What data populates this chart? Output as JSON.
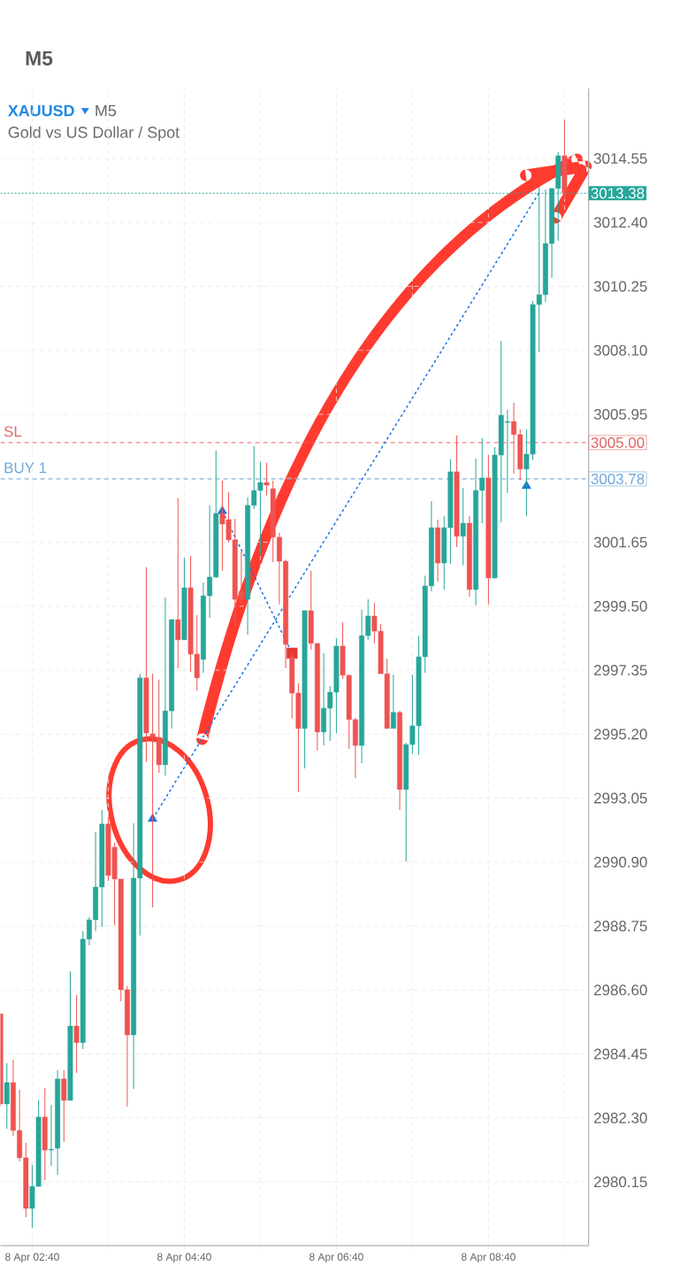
{
  "chart_data": {
    "type": "candlestick",
    "title": "XAUUSD",
    "subtitle": "Gold vs US Dollar / Spot",
    "annotations": [
      "M5",
      "M5",
      {
        "text": "SL",
        "y": 3005.0
      },
      {
        "text": "BUY 1",
        "y": 3003.78
      }
    ],
    "grid": true,
    "xlim": [
      "--04-08T02:15",
      "--04-08T09:59"
    ],
    "xticks": [
      {
        "value": "--04-08T02:40",
        "label": "8 Apr 02:40"
      },
      {
        "value": "--04-08T03:40",
        "label": null
      },
      {
        "value": "--04-08T04:40",
        "label": "8 Apr 04:40"
      },
      {
        "value": "--04-08T05:40",
        "label": null
      },
      {
        "value": "--04-08T06:40",
        "label": "8 Apr 06:40"
      },
      {
        "value": "--04-08T07:40",
        "label": null
      },
      {
        "value": "--04-08T08:40",
        "label": "8 Apr 08:40"
      },
      {
        "value": "--04-08T09:40",
        "label": null
      }
    ],
    "ylim": [
      2978.01,
      3016.9
    ],
    "yticks": [
      {
        "value": 2980.15,
        "label": "2980.15"
      },
      {
        "value": 2982.3,
        "label": "2982.30"
      },
      {
        "value": 2984.45,
        "label": "2984.45"
      },
      {
        "value": 2986.6,
        "label": "2986.60"
      },
      {
        "value": 2988.75,
        "label": "2988.75"
      },
      {
        "value": 2990.9,
        "label": "2990.90"
      },
      {
        "value": 2993.05,
        "label": "2993.05"
      },
      {
        "value": 2995.2,
        "label": "2995.20"
      },
      {
        "value": 2997.35,
        "label": "2997.35"
      },
      {
        "value": 2999.5,
        "label": "2999.50"
      },
      {
        "value": 3001.65,
        "label": "3001.65"
      },
      {
        "value": 3003.8,
        "label": null
      },
      {
        "value": 3005.95,
        "label": "3005.95"
      },
      {
        "value": 3008.1,
        "label": "3008.10"
      },
      {
        "value": 3010.25,
        "label": "3010.25"
      },
      {
        "value": 3012.4,
        "label": "3012.40"
      },
      {
        "value": 3014.55,
        "label": "3014.55"
      }
    ],
    "ref_lines": [
      {
        "axis": "y",
        "value": 3013.38,
        "label": "3013.38",
        "color": "#26a69a",
        "line_style": "dotted"
      },
      {
        "axis": "y",
        "value": 3005.0,
        "label": "3005.00",
        "color": "#e06666",
        "line_style": "dashed"
      },
      {
        "axis": "y",
        "value": 3003.78,
        "label": "3003.78",
        "color": "#6fa8dc",
        "line_style": "dashed"
      }
    ],
    "x": [
      "--04-08T02:15",
      "--04-08T02:20",
      "--04-08T02:25",
      "--04-08T02:30",
      "--04-08T02:35",
      "--04-08T02:40",
      "--04-08T02:45",
      "--04-08T02:50",
      "--04-08T02:55",
      "--04-08T03:00",
      "--04-08T03:05",
      "--04-08T03:10",
      "--04-08T03:15",
      "--04-08T03:20",
      "--04-08T03:25",
      "--04-08T03:30",
      "--04-08T03:35",
      "--04-08T03:40",
      "--04-08T03:45",
      "--04-08T03:50",
      "--04-08T03:55",
      "--04-08T04:00",
      "--04-08T04:05",
      "--04-08T04:10",
      "--04-08T04:15",
      "--04-08T04:20",
      "--04-08T04:25",
      "--04-08T04:30",
      "--04-08T04:35",
      "--04-08T04:40",
      "--04-08T04:45",
      "--04-08T04:50",
      "--04-08T04:55",
      "--04-08T05:00",
      "--04-08T05:05",
      "--04-08T05:10",
      "--04-08T05:15",
      "--04-08T05:20",
      "--04-08T05:25",
      "--04-08T05:30",
      "--04-08T05:35",
      "--04-08T05:40",
      "--04-08T05:45",
      "--04-08T05:50",
      "--04-08T05:55",
      "--04-08T06:00",
      "--04-08T06:05",
      "--04-08T06:10",
      "--04-08T06:15",
      "--04-08T06:20",
      "--04-08T06:25",
      "--04-08T06:30",
      "--04-08T06:35",
      "--04-08T06:40",
      "--04-08T06:45",
      "--04-08T06:50",
      "--04-08T06:55",
      "--04-08T07:00",
      "--04-08T07:05",
      "--04-08T07:10",
      "--04-08T07:15",
      "--04-08T07:20",
      "--04-08T07:25",
      "--04-08T07:30",
      "--04-08T07:35",
      "--04-08T07:40",
      "--04-08T07:45",
      "--04-08T07:50",
      "--04-08T07:55",
      "--04-08T08:00",
      "--04-08T08:05",
      "--04-08T08:10",
      "--04-08T08:15",
      "--04-08T08:20",
      "--04-08T08:25",
      "--04-08T08:30",
      "--04-08T08:35",
      "--04-08T08:40",
      "--04-08T08:45",
      "--04-08T08:50",
      "--04-08T08:55",
      "--04-08T09:00",
      "--04-08T09:05",
      "--04-08T09:10",
      "--04-08T09:15",
      "--04-08T09:20",
      "--04-08T09:25",
      "--04-08T09:30",
      "--04-08T09:35",
      "--04-08T09:40"
    ],
    "colors": [
      "#ef5350",
      "#26a69a",
      "#ef5350",
      "#ef5350",
      "#ef5350",
      "#26a69a",
      "#26a69a",
      "#ef5350",
      "#26a69a",
      "#26a69a",
      "#ef5350",
      "#26a69a",
      "#ef5350",
      "#26a69a",
      "#26a69a",
      "#26a69a",
      "#26a69a",
      "#ef5350",
      "#ef5350",
      "#ef5350",
      "#ef5350",
      "#26a69a",
      "#26a69a",
      "#ef5350",
      "#ef5350",
      "#ef5350",
      "#26a69a",
      "#26a69a",
      "#ef5350",
      "#26a69a",
      "#ef5350",
      "#ef5350",
      "#26a69a",
      "#26a69a",
      "#26a69a",
      "#ef5350",
      "#ef5350",
      "#ef5350",
      "#ef5350",
      "#26a69a",
      "#26a69a",
      "#26a69a",
      "#ef5350",
      "#ef5350",
      "#ef5350",
      "#ef5350",
      "#ef5350",
      "#ef5350",
      "#26a69a",
      "#ef5350",
      "#ef5350",
      "#26a69a",
      "#26a69a",
      "#26a69a",
      "#ef5350",
      "#ef5350",
      "#ef5350",
      "#26a69a",
      "#26a69a",
      "#ef5350",
      "#ef5350",
      "#ef5350",
      "#26a69a",
      "#ef5350",
      "#26a69a",
      "#26a69a",
      "#26a69a",
      "#26a69a",
      "#26a69a",
      "#ef5350",
      "#26a69a",
      "#26a69a",
      "#ef5350",
      "#26a69a",
      "#ef5350",
      "#26a69a",
      "#26a69a",
      "#ef5350",
      "#26a69a",
      "#26a69a",
      "#26a69a",
      "#ef5350",
      "#ef5350",
      "#26a69a",
      "#26a69a",
      "#26a69a",
      "#26a69a",
      "#26a69a",
      "#26a69a",
      "#ef5350"
    ],
    "ohlc": [
      [
        2985.8,
        2985.8,
        2982.68,
        2982.77
      ],
      [
        2982.77,
        2984.14,
        2981.94,
        2983.49
      ],
      [
        2983.49,
        2984.26,
        2981.7,
        2981.88
      ],
      [
        2981.88,
        2983.25,
        2980.84,
        2980.96
      ],
      [
        2980.96,
        2981.46,
        2978.96,
        2979.26
      ],
      [
        2979.26,
        2980.72,
        2978.61,
        2980.0
      ],
      [
        2980.0,
        2982.89,
        2980.0,
        2982.33
      ],
      [
        2982.33,
        2983.31,
        2980.21,
        2981.22
      ],
      [
        2981.22,
        2982.74,
        2980.69,
        2981.25
      ],
      [
        2981.28,
        2983.9,
        2980.39,
        2983.61
      ],
      [
        2983.61,
        2983.9,
        2981.49,
        2982.89
      ],
      [
        2982.89,
        2987.23,
        2982.89,
        2985.39
      ],
      [
        2985.39,
        2986.43,
        2983.81,
        2984.83
      ],
      [
        2984.83,
        2988.58,
        2984.62,
        2988.31
      ],
      [
        2988.31,
        2989.05,
        2988.1,
        2988.96
      ],
      [
        2988.96,
        2991.91,
        2988.58,
        2990.06
      ],
      [
        2990.06,
        2992.65,
        2988.72,
        2992.18
      ],
      [
        2992.18,
        2992.41,
        2990.27,
        2990.45
      ],
      [
        2991.4,
        2991.55,
        2988.78,
        2990.33
      ],
      [
        2990.33,
        2990.33,
        2986.22,
        2986.61
      ],
      [
        2986.61,
        2986.73,
        2982.68,
        2985.09
      ],
      [
        2985.09,
        2992.2,
        2983.28,
        2990.36
      ],
      [
        2990.36,
        2997.23,
        2988.43,
        2997.09
      ],
      [
        2997.09,
        3000.81,
        2994.26,
        2995.24
      ],
      [
        2995.21,
        2997.23,
        2989.38,
        2995.09
      ],
      [
        2995.09,
        2997.03,
        2993.9,
        2994.17
      ],
      [
        2994.17,
        2999.79,
        2993.81,
        2995.98
      ],
      [
        2995.98,
        2999.05,
        2995.39,
        2999.05
      ],
      [
        2999.05,
        3003.13,
        2997.41,
        2998.37
      ],
      [
        2998.37,
        3001.13,
        2998.37,
        3000.12
      ],
      [
        3000.12,
        3001.19,
        2997.29,
        2997.89
      ],
      [
        2997.89,
        2999.2,
        2996.67,
        2997.09
      ],
      [
        2997.71,
        3000.3,
        2997.26,
        2999.85
      ],
      [
        2999.85,
        3002.89,
        2999.11,
        3000.48
      ],
      [
        3000.48,
        3004.73,
        3000.45,
        3002.62
      ],
      [
        3002.62,
        3003.72,
        3000.69,
        3002.26
      ],
      [
        3002.41,
        3003.34,
        3001.64,
        3001.73
      ],
      [
        3001.73,
        3002.44,
        2998.84,
        2999.73
      ],
      [
        3000.0,
        3001.34,
        2999.5,
        2999.73
      ],
      [
        2999.73,
        3003.16,
        2998.54,
        3002.89
      ],
      [
        3002.89,
        3004.88,
        3002.77,
        3003.39
      ],
      [
        3003.39,
        3004.35,
        3001.22,
        3003.66
      ],
      [
        3003.66,
        3004.32,
        3003.22,
        3003.57
      ],
      [
        3003.45,
        3003.72,
        3000.98,
        3001.82
      ],
      [
        3001.82,
        3001.97,
        2999.56,
        3001.01
      ],
      [
        3001.01,
        3001.07,
        2997.41,
        2998.22
      ],
      [
        2997.8,
        2997.92,
        2995.72,
        2996.58
      ],
      [
        2996.58,
        2996.91,
        2993.25,
        2995.39
      ],
      [
        2995.39,
        2999.35,
        2994.05,
        2999.35
      ],
      [
        2999.35,
        3000.69,
        2998.04,
        2998.25
      ],
      [
        2998.25,
        2998.25,
        2994.65,
        2995.27
      ],
      [
        2995.27,
        2997.92,
        2994.82,
        2996.07
      ],
      [
        2996.07,
        2996.82,
        2994.97,
        2996.61
      ],
      [
        2996.61,
        2998.42,
        2995.24,
        2998.16
      ],
      [
        2998.16,
        2998.96,
        2997.06,
        2997.18
      ],
      [
        2997.18,
        2997.18,
        2994.71,
        2995.69
      ],
      [
        2995.69,
        2995.75,
        2993.72,
        2994.82
      ],
      [
        2994.82,
        2999.38,
        2994.23,
        2998.51
      ],
      [
        2998.51,
        2999.73,
        2998.37,
        2999.17
      ],
      [
        2999.17,
        2999.62,
        2998.25,
        2998.66
      ],
      [
        2998.66,
        2998.9,
        2997.23,
        2997.23
      ],
      [
        2997.23,
        2997.74,
        2995.39,
        2995.39
      ],
      [
        2995.39,
        2997.2,
        2995.39,
        2995.93
      ],
      [
        2995.93,
        2995.99,
        2992.65,
        2993.34
      ],
      [
        2993.34,
        2994.91,
        2990.92,
        2994.85
      ],
      [
        2994.85,
        2997.2,
        2994.53,
        2995.48
      ],
      [
        2995.48,
        2998.51,
        2994.5,
        2997.8
      ],
      [
        2997.8,
        3000.53,
        2997.26,
        3000.18
      ],
      [
        3000.18,
        3003.03,
        3000.0,
        3002.14
      ],
      [
        3002.14,
        3002.41,
        3000.33,
        3000.95
      ],
      [
        3000.95,
        3002.53,
        3000.06,
        3002.14
      ],
      [
        3002.14,
        3004.44,
        3000.92,
        3004.02
      ],
      [
        3004.02,
        3005.24,
        3001.49,
        3001.85
      ],
      [
        3001.85,
        3003.48,
        3000.87,
        3002.29
      ],
      [
        3002.29,
        3002.53,
        2999.82,
        3000.06
      ],
      [
        3000.06,
        3004.46,
        2999.53,
        3003.39
      ],
      [
        3003.39,
        3005.15,
        3002.29,
        3003.81
      ],
      [
        3003.81,
        3004.58,
        2999.56,
        3000.45
      ],
      [
        3000.45,
        3004.85,
        3000.42,
        3004.58
      ],
      [
        3004.58,
        3008.42,
        3002.32,
        3005.92
      ],
      [
        3005.68,
        3006.1,
        3003.3,
        3005.71
      ],
      [
        3005.71,
        3006.34,
        3003.96,
        3005.27
      ],
      [
        3005.27,
        3005.45,
        3003.75,
        3004.11
      ],
      [
        3004.11,
        3005.45,
        3002.53,
        3004.61
      ],
      [
        3004.61,
        3009.76,
        3004.41,
        3009.64
      ],
      [
        3009.64,
        3013.6,
        3008.04,
        3009.97
      ],
      [
        3009.97,
        3013.51,
        3009.73,
        3011.69
      ],
      [
        3011.69,
        3013.54,
        3010.53,
        3013.54
      ],
      [
        3013.54,
        3014.76,
        3011.78,
        3014.64
      ],
      [
        3014.64,
        3015.86,
        3013.18,
        3013.38
      ]
    ],
    "series": [
      {
        "type": "line",
        "color": "#1a73e8",
        "line_style": "dashed",
        "marker": "none",
        "x": [
          "--04-08T04:15",
          "--04-08T09:20"
        ],
        "values": [
          2992.35,
          3013.4
        ]
      },
      {
        "type": "line",
        "color": "#1a73e8",
        "line_style": "dashed",
        "marker": "none",
        "x": [
          "--04-08T05:10",
          "--04-08T06:05"
        ],
        "values": [
          3002.7,
          2997.92
        ]
      },
      {
        "type": "scatter",
        "color": "#1a73e8",
        "marker": "triangle",
        "x": [
          "--04-08T04:15",
          "--04-08T05:10",
          "--04-08T09:10"
        ],
        "values": [
          2992.35,
          3002.7,
          3003.54
        ]
      },
      {
        "type": "scatter",
        "color": "#e53935",
        "marker": "square",
        "x": [
          "--04-08T06:05"
        ],
        "values": [
          2997.92
        ]
      }
    ]
  }
}
